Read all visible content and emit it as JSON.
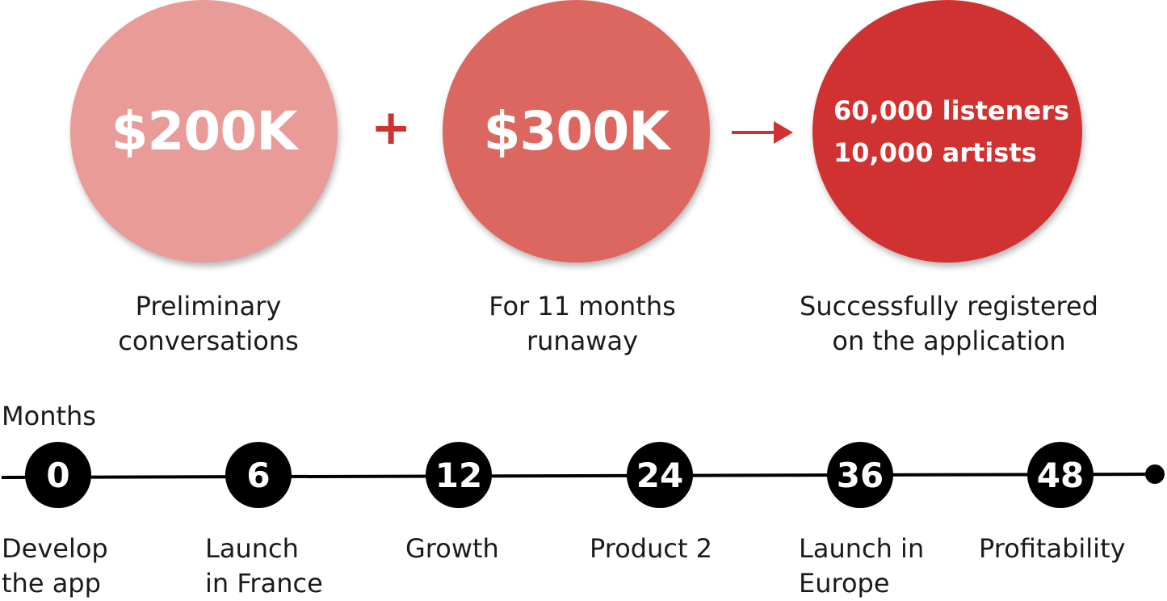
{
  "funding": {
    "first": {
      "amount": "$200K",
      "caption": [
        "Preliminary",
        "conversations"
      ],
      "color": "#e89b97"
    },
    "operator_plus": "+",
    "second": {
      "amount": "$300K",
      "caption": [
        "For 11 months",
        "runaway"
      ],
      "color": "#dc6660"
    },
    "result": {
      "lines": [
        "60,000 listeners",
        "10,000 artists"
      ],
      "caption": [
        "Successfully registered",
        "on the application"
      ],
      "color": "#cf3230"
    },
    "accent_color": "#cf3230"
  },
  "timeline": {
    "axis_label": "Months",
    "milestones": [
      {
        "month": "0",
        "label": [
          "Develop",
          "the app"
        ]
      },
      {
        "month": "6",
        "label": [
          "Launch",
          "in France"
        ]
      },
      {
        "month": "12",
        "label": [
          "Growth"
        ]
      },
      {
        "month": "24",
        "label": [
          "Product 2"
        ]
      },
      {
        "month": "36",
        "label": [
          "Launch in",
          "Europe"
        ]
      },
      {
        "month": "48",
        "label": [
          "Profitability"
        ]
      }
    ]
  }
}
